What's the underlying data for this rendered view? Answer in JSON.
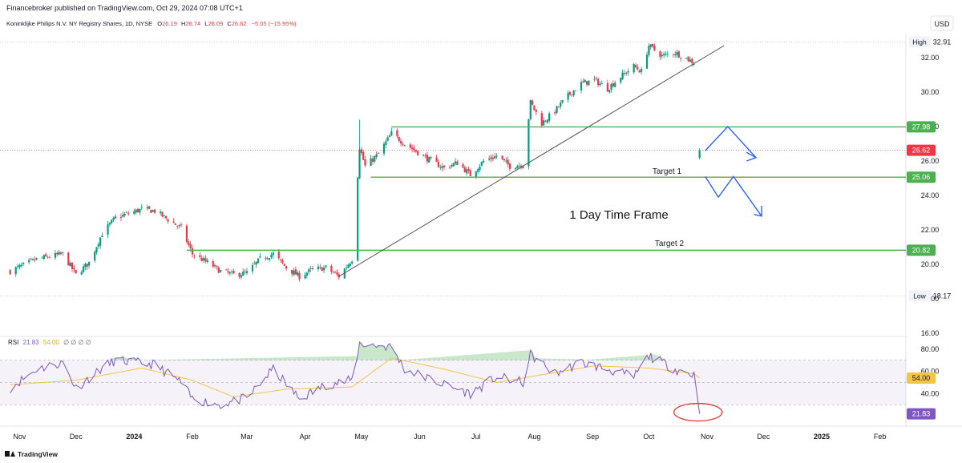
{
  "header": {
    "published": "Financebroker published on TradingView.com, Oct 29, 2024 07:08 UTC+1",
    "symbol": "Koninklijke Philips N.V. NY Registry Shares, 1D, NYSE",
    "o_label": "O",
    "o_value": "26.19",
    "h_label": "H",
    "h_value": "26.74",
    "l_label": "L",
    "l_value": "26.09",
    "c_label": "C",
    "c_value": "26.62",
    "change": "−5.05 (−15.95%)",
    "currency": "USD"
  },
  "annotations": {
    "timeframe": "1 Day Time Frame",
    "target1": "Target 1",
    "target2": "Target 2",
    "high_label": "High",
    "low_label": "Low"
  },
  "footer": {
    "brand": "TradingView"
  },
  "colors": {
    "up": "#089981",
    "down": "#f23645",
    "level": "#4caf50",
    "trend": "#555555",
    "arrow": "#2962ff",
    "rsi": "#7e57c2",
    "rsi_ma": "#f5c542",
    "circle": "#e53935"
  },
  "chart_data": [
    {
      "type": "candlestick",
      "y_axis": {
        "range": [
          16,
          34
        ],
        "ticks": [
          "16.00",
          "18.00",
          "20.00",
          "22.00",
          "24.00",
          "26.00",
          "28.00",
          "30.00",
          "32.00"
        ]
      },
      "x_axis": {
        "ticks": [
          "Nov",
          "Dec",
          "2024",
          "Feb",
          "Mar",
          "Apr",
          "May",
          "Jun",
          "Jul",
          "Aug",
          "Sep",
          "Oct",
          "Nov",
          "Dec",
          "2025",
          "Feb"
        ]
      },
      "levels": [
        {
          "label": "27.98",
          "value": 27.98
        },
        {
          "label": "25.06",
          "value": 25.06
        },
        {
          "label": "20.82",
          "value": 20.82
        }
      ],
      "high": {
        "label": "32.91",
        "value": 32.91
      },
      "low": {
        "label": "18.17",
        "value": 18.17
      },
      "last_price": {
        "label": "26.62",
        "value": 26.62
      },
      "keypoints": [
        [
          "2023-10-27",
          19.6
        ],
        [
          "2023-11-10",
          20.3
        ],
        [
          "2023-11-24",
          20.6
        ],
        [
          "2023-12-01",
          19.4
        ],
        [
          "2023-12-08",
          20.1
        ],
        [
          "2023-12-15",
          21.8
        ],
        [
          "2023-12-22",
          22.7
        ],
        [
          "2024-01-05",
          23.2
        ],
        [
          "2024-01-12",
          23.1
        ],
        [
          "2024-01-19",
          22.6
        ],
        [
          "2024-01-26",
          22.1
        ],
        [
          "2024-02-01",
          20.6
        ],
        [
          "2024-02-09",
          20.1
        ],
        [
          "2024-02-16",
          19.6
        ],
        [
          "2024-02-23",
          19.4
        ],
        [
          "2024-03-01",
          19.5
        ],
        [
          "2024-03-08",
          20.3
        ],
        [
          "2024-03-15",
          20.6
        ],
        [
          "2024-03-22",
          19.8
        ],
        [
          "2024-03-29",
          19.3
        ],
        [
          "2024-04-05",
          19.7
        ],
        [
          "2024-04-12",
          19.8
        ],
        [
          "2024-04-19",
          19.3
        ],
        [
          "2024-04-26",
          20.3
        ],
        [
          "2024-04-30",
          26.8
        ],
        [
          "2024-05-03",
          25.7
        ],
        [
          "2024-05-10",
          26.4
        ],
        [
          "2024-05-17",
          27.6
        ],
        [
          "2024-05-24",
          27.0
        ],
        [
          "2024-05-31",
          26.5
        ],
        [
          "2024-06-07",
          26.0
        ],
        [
          "2024-06-14",
          25.6
        ],
        [
          "2024-06-21",
          25.9
        ],
        [
          "2024-06-28",
          25.2
        ],
        [
          "2024-07-05",
          26.0
        ],
        [
          "2024-07-12",
          26.3
        ],
        [
          "2024-07-19",
          25.7
        ],
        [
          "2024-07-26",
          25.8
        ],
        [
          "2024-07-30",
          29.4
        ],
        [
          "2024-08-05",
          28.2
        ],
        [
          "2024-08-12",
          28.9
        ],
        [
          "2024-08-19",
          29.8
        ],
        [
          "2024-08-26",
          30.5
        ],
        [
          "2024-09-02",
          30.7
        ],
        [
          "2024-09-09",
          30.2
        ],
        [
          "2024-09-16",
          30.9
        ],
        [
          "2024-09-23",
          31.5
        ],
        [
          "2024-09-27",
          31.2
        ],
        [
          "2024-10-01",
          32.7
        ],
        [
          "2024-10-08",
          32.1
        ],
        [
          "2024-10-15",
          32.3
        ],
        [
          "2024-10-22",
          31.9
        ],
        [
          "2024-10-25",
          31.7
        ],
        [
          "2024-10-28",
          26.62
        ]
      ]
    },
    {
      "type": "line",
      "title": "RSI",
      "legend": {
        "value": "21.83",
        "ma_value": "54.00",
        "extra": "∅ ∅ ∅ ∅"
      },
      "y_axis": {
        "ticks": [
          "40.00",
          "60.00",
          "80.00"
        ],
        "band": [
          30,
          70
        ],
        "mid": 50
      },
      "rsi_label": {
        "label": "21.83",
        "value": 21.83
      },
      "ma_label": {
        "label": "54.00",
        "value": 54.0
      },
      "keypoints": [
        [
          "2023-10-27",
          45
        ],
        [
          "2023-11-10",
          62
        ],
        [
          "2023-11-24",
          68
        ],
        [
          "2023-12-01",
          45
        ],
        [
          "2023-12-15",
          63
        ],
        [
          "2023-12-22",
          70
        ],
        [
          "2024-01-12",
          66
        ],
        [
          "2024-01-26",
          50
        ],
        [
          "2024-02-01",
          35
        ],
        [
          "2024-02-16",
          30
        ],
        [
          "2024-03-01",
          36
        ],
        [
          "2024-03-15",
          62
        ],
        [
          "2024-03-29",
          35
        ],
        [
          "2024-04-12",
          48
        ],
        [
          "2024-04-26",
          52
        ],
        [
          "2024-04-30",
          85
        ],
        [
          "2024-05-17",
          82
        ],
        [
          "2024-05-24",
          62
        ],
        [
          "2024-06-14",
          48
        ],
        [
          "2024-06-28",
          40
        ],
        [
          "2024-07-12",
          55
        ],
        [
          "2024-07-26",
          50
        ],
        [
          "2024-07-30",
          75
        ],
        [
          "2024-08-12",
          58
        ],
        [
          "2024-08-26",
          68
        ],
        [
          "2024-09-09",
          62
        ],
        [
          "2024-09-23",
          55
        ],
        [
          "2024-10-01",
          74
        ],
        [
          "2024-10-15",
          62
        ],
        [
          "2024-10-25",
          57
        ],
        [
          "2024-10-28",
          21.83
        ]
      ],
      "ma_keypoints": [
        [
          "2023-10-27",
          48
        ],
        [
          "2023-12-01",
          52
        ],
        [
          "2024-01-05",
          63
        ],
        [
          "2024-02-01",
          52
        ],
        [
          "2024-02-23",
          37
        ],
        [
          "2024-03-22",
          44
        ],
        [
          "2024-04-26",
          46
        ],
        [
          "2024-05-17",
          72
        ],
        [
          "2024-06-14",
          62
        ],
        [
          "2024-07-12",
          50
        ],
        [
          "2024-08-05",
          57
        ],
        [
          "2024-09-02",
          65
        ],
        [
          "2024-10-01",
          63
        ],
        [
          "2024-10-25",
          58
        ],
        [
          "2024-10-28",
          54
        ]
      ]
    }
  ]
}
